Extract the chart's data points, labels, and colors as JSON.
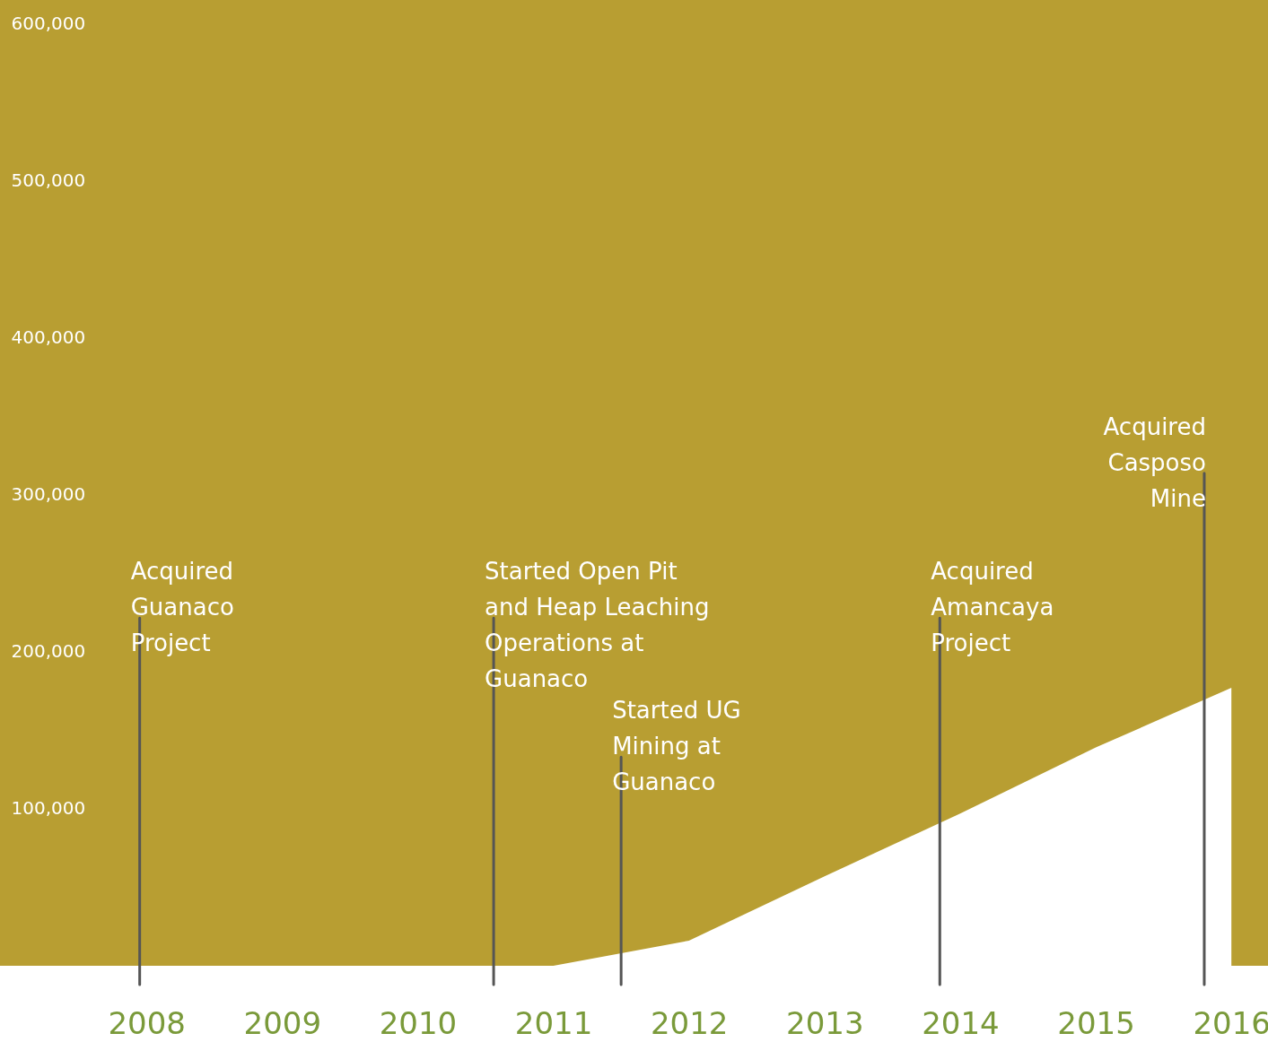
{
  "chart_data": {
    "type": "area",
    "x": [
      2008,
      2009,
      2010,
      2011,
      2012,
      2013,
      2014,
      2015,
      2016
    ],
    "series": [
      {
        "color": "#ffffff",
        "values": [
          0,
          0,
          0,
          0,
          16000,
          57000,
          97000,
          139000,
          177000
        ]
      }
    ],
    "xlim": [
      2006.92,
      2016.27
    ],
    "xticks": [
      2008,
      2009,
      2010,
      2011,
      2012,
      2013,
      2014,
      2015,
      2016
    ],
    "ylim": [
      0,
      615000
    ],
    "yticks": [
      {
        "value": 100000,
        "label": "100,000"
      },
      {
        "value": 200000,
        "label": "200,000"
      },
      {
        "value": 300000,
        "label": "300,000"
      },
      {
        "value": 400000,
        "label": "400,000"
      },
      {
        "value": 500000,
        "label": "500,000"
      },
      {
        "value": 600000,
        "label": "600,000"
      }
    ],
    "grid": false,
    "ref_lines": [
      {
        "axis": "x",
        "value": 2007.95,
        "label": "Acquired\nGuanaco\nProject"
      },
      {
        "axis": "x",
        "value": 2010.56,
        "label": "Started Open Pit\nand Heap Leaching\nOperations at\nGuanaco"
      },
      {
        "axis": "x",
        "value": 2011.5,
        "label": "Started UG\nMining at\nGuanaco"
      },
      {
        "axis": "x",
        "value": 2013.85,
        "label": "Acquired\nAmancaya\nProject"
      },
      {
        "axis": "x",
        "value": 2015.8,
        "label": "Acquired\nCasposo\nMine"
      }
    ]
  }
}
